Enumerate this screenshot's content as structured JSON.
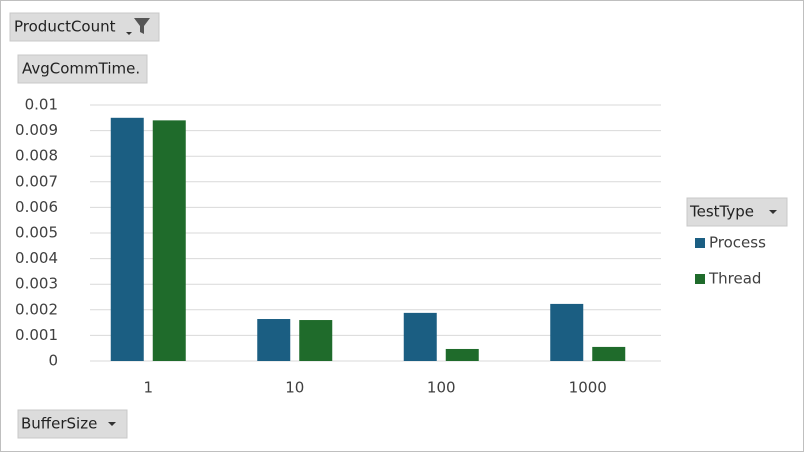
{
  "chart_data": {
    "type": "bar",
    "filter_field": "ProductCount",
    "value_field": "AvgCommTime.",
    "axis_field": "BufferSize",
    "legend_field": "TestType",
    "categories": [
      "1",
      "10",
      "100",
      "1000"
    ],
    "series": [
      {
        "name": "Process",
        "color": "#1b5e82",
        "values": [
          0.0095,
          0.00164,
          0.00188,
          0.00223
        ]
      },
      {
        "name": "Thread",
        "color": "#1f6b2b",
        "values": [
          0.0094,
          0.0016,
          0.00047,
          0.00055
        ]
      }
    ],
    "ylim": [
      0,
      0.01
    ],
    "yticks": [
      0,
      0.001,
      0.002,
      0.003,
      0.004,
      0.005,
      0.006,
      0.007,
      0.008,
      0.009,
      0.01
    ],
    "grid": true
  }
}
